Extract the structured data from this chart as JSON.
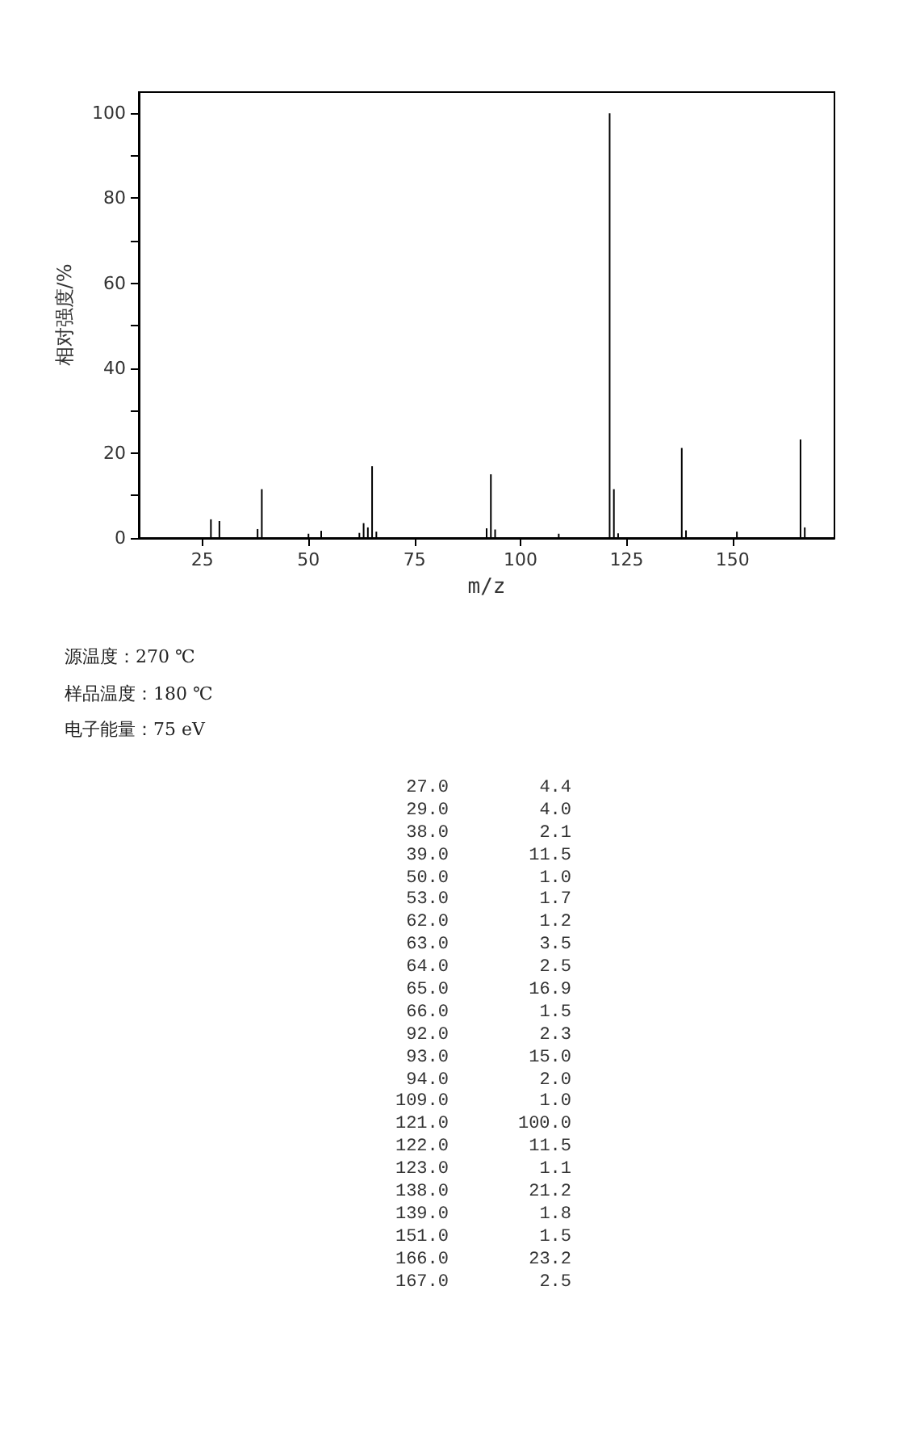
{
  "chart_data": [
    {
      "type": "bar",
      "xlabel": "m/z",
      "ylabel": "相对强度/%",
      "x": [
        27,
        29,
        38,
        39,
        50,
        53,
        62,
        63,
        64,
        65,
        66,
        92,
        93,
        94,
        109,
        121,
        122,
        123,
        138,
        139,
        151,
        166,
        167
      ],
      "values": [
        4.4,
        4.0,
        2.1,
        11.5,
        1.0,
        1.7,
        1.2,
        3.5,
        2.5,
        16.9,
        1.5,
        2.3,
        15.0,
        2.0,
        1.0,
        100.0,
        11.5,
        1.1,
        21.2,
        1.8,
        1.5,
        23.2,
        2.5
      ],
      "color": "#000000",
      "xlim": [
        10,
        174
      ],
      "xticks": [
        25,
        50,
        75,
        100,
        125,
        150
      ],
      "ylim": [
        0,
        105
      ],
      "yticks": [
        0,
        {
          "value": 10,
          "label": null
        },
        20,
        {
          "value": 30,
          "label": null
        },
        40,
        {
          "value": 50,
          "label": null
        },
        60,
        {
          "value": 70,
          "label": null
        },
        80,
        {
          "value": 90,
          "label": null
        },
        100
      ],
      "grid": false,
      "annotations": [
        "源温度：270 ℃",
        "样品温度：180 ℃",
        "电子能量：75 eV"
      ]
    },
    {
      "type": "other",
      "categories": [
        "27.0",
        "29.0",
        "38.0",
        "39.0",
        "50.0",
        "53.0",
        "62.0",
        "63.0",
        "64.0",
        "65.0",
        "66.0",
        "92.0",
        "93.0",
        "94.0",
        "109.0",
        "121.0",
        "122.0",
        "123.0",
        "138.0",
        "139.0",
        "151.0",
        "166.0",
        "167.0"
      ],
      "value_labels": [
        "4.4",
        "4.0",
        "2.1",
        "11.5",
        "1.0",
        "1.7",
        "1.2",
        "3.5",
        "2.5",
        "16.9",
        "1.5",
        "2.3",
        "15.0",
        "2.0",
        "1.0",
        "100.0",
        "11.5",
        "1.1",
        "21.2",
        "1.8",
        "1.5",
        "23.2",
        "2.5"
      ]
    }
  ]
}
